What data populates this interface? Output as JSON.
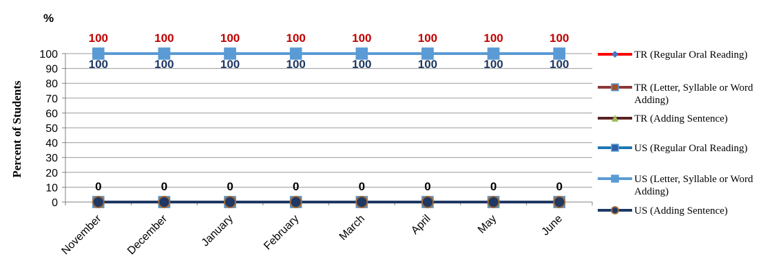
{
  "chart_data": {
    "type": "line",
    "unit_label": "%",
    "ylabel": "Percent of Students",
    "xlabel": "",
    "ylim": [
      0,
      100
    ],
    "ytick_step": 10,
    "grid": "horizontal",
    "legend_position": "right",
    "categories": [
      "November",
      "December",
      "January",
      "February",
      "March",
      "April",
      "May",
      "June"
    ],
    "series": [
      {
        "name": "TR (Regular Oral Reading)",
        "values": [
          100,
          100,
          100,
          100,
          100,
          100,
          100,
          100
        ],
        "color": "#ff0000",
        "marker": "diamond",
        "marker_color": "#4472c4",
        "labels": [
          "100",
          "100",
          "100",
          "100",
          "100",
          "100",
          "100",
          "100"
        ],
        "label_color": "#c00000",
        "label_pos": "above"
      },
      {
        "name": "TR (Letter, Syllable or Word Adding)",
        "values": [
          0,
          0,
          0,
          0,
          0,
          0,
          0,
          0
        ],
        "color": "#8b3a3a",
        "marker": "square",
        "marker_color": "#a0522d"
      },
      {
        "name": "TR (Adding Sentence)",
        "values": [
          0,
          0,
          0,
          0,
          0,
          0,
          0,
          0
        ],
        "color": "#5a2222",
        "marker": "triangle",
        "marker_color": "#9bbb59"
      },
      {
        "name": "US (Regular Oral Reading)",
        "values": [
          100,
          100,
          100,
          100,
          100,
          100,
          100,
          100
        ],
        "color": "#1f77b4",
        "marker": "square",
        "marker_color": "#2e5fa8",
        "labels": [
          "100",
          "100",
          "100",
          "100",
          "100",
          "100",
          "100",
          "100"
        ],
        "label_color": "#1f3864",
        "label_pos": "below"
      },
      {
        "name": "US (Letter, Syllable or Word Adding)",
        "values": [
          100,
          100,
          100,
          100,
          100,
          100,
          100,
          100
        ],
        "color": "#5b9bd5",
        "marker": "square",
        "marker_color": "#5b9bd5"
      },
      {
        "name": "US (Adding Sentence)",
        "values": [
          0,
          0,
          0,
          0,
          0,
          0,
          0,
          0
        ],
        "color": "#1f3864",
        "marker": "circle",
        "marker_color": "#1f3864",
        "labels": [
          "0",
          "0",
          "0",
          "0",
          "0",
          "0",
          "0",
          "0"
        ],
        "label_color": "#000000",
        "label_pos": "above"
      }
    ]
  }
}
